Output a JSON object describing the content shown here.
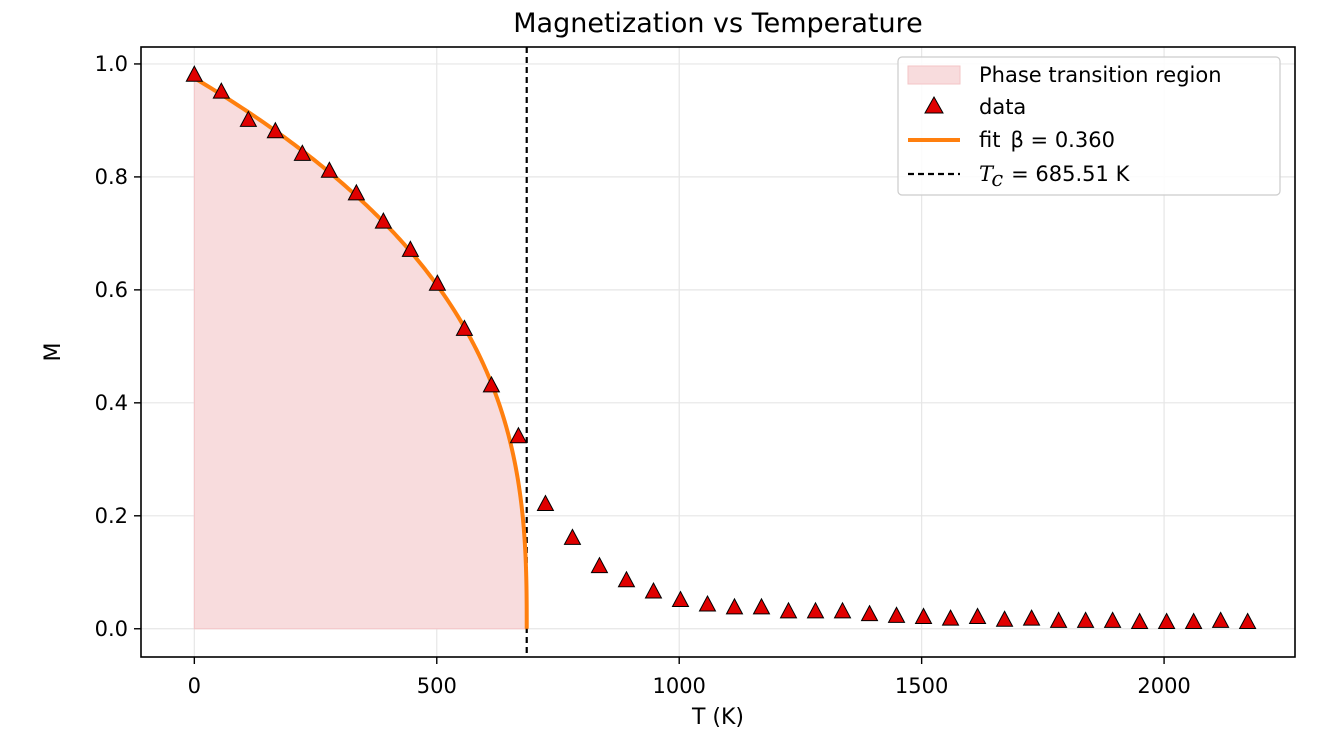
{
  "chart_data": {
    "type": "scatter",
    "title": "Magnetization vs Temperature",
    "xlabel": "T (K)",
    "ylabel": "M",
    "xlim": [
      -110,
      2270
    ],
    "ylim": [
      -0.05,
      1.03
    ],
    "xticks": [
      0,
      500,
      1000,
      1500,
      2000
    ],
    "yticks": [
      0.0,
      0.2,
      0.4,
      0.6,
      0.8,
      1.0
    ],
    "xtick_labels": [
      "0",
      "500",
      "1000",
      "1500",
      "2000"
    ],
    "ytick_labels": [
      "0.0",
      "0.2",
      "0.4",
      "0.6",
      "0.8",
      "1.0"
    ],
    "grid": true,
    "legend_position": "top-right",
    "colors": {
      "data_fill": "#e00000",
      "fit_line": "#ff7f0e",
      "region_fill": "#f8dcdd",
      "tc_line": "#000000"
    },
    "region": {
      "label": "Phase transition region",
      "from": 0,
      "to": 685.51,
      "follows": "fit"
    },
    "data": {
      "label": "data",
      "marker": "triangle",
      "x": [
        0,
        55.7,
        111.4,
        167.1,
        222.8,
        278.5,
        334.2,
        389.9,
        445.6,
        501.3,
        557.0,
        612.7,
        668.4,
        724.1,
        779.8,
        835.5,
        891.2,
        946.9,
        1002.6,
        1058.3,
        1114.0,
        1169.7,
        1225.4,
        1281.1,
        1336.8,
        1392.5,
        1448.2,
        1503.9,
        1559.6,
        1615.3,
        1671.0,
        1726.7,
        1782.4,
        1838.1,
        1893.8,
        1949.5,
        2005.2,
        2060.9,
        2116.6,
        2172.3
      ],
      "y": [
        0.98,
        0.95,
        0.9,
        0.88,
        0.84,
        0.81,
        0.77,
        0.72,
        0.67,
        0.61,
        0.53,
        0.43,
        0.34,
        0.22,
        0.16,
        0.11,
        0.085,
        0.065,
        0.05,
        0.042,
        0.037,
        0.037,
        0.03,
        0.03,
        0.03,
        0.025,
        0.022,
        0.02,
        0.017,
        0.02,
        0.015,
        0.017,
        0.013,
        0.013,
        0.013,
        0.011,
        0.011,
        0.011,
        0.013,
        0.011
      ]
    },
    "fit": {
      "label_text": "fit",
      "label_math": "β = 0.360",
      "beta": 0.36,
      "m0": 0.975,
      "tc": 685.51
    },
    "tc_line": {
      "symbol": "T",
      "subscript": "c",
      "value_text": "= 685.51 K",
      "x": 685.51
    }
  }
}
